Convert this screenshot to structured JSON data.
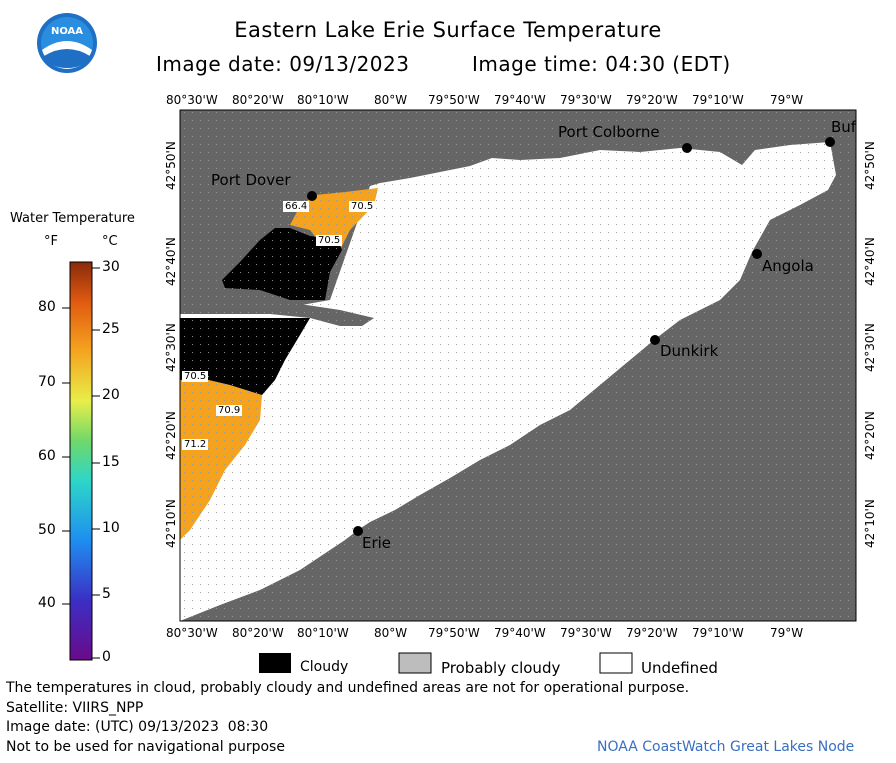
{
  "header": {
    "logo_text": "NOAA",
    "title": "Eastern Lake Erie Surface Temperature",
    "image_date_label": "Image date: 09/13/2023",
    "image_time_label": "Image time: 04:30 (EDT)"
  },
  "map": {
    "lon_labels": [
      "80°30'W",
      "80°20'W",
      "80°10'W",
      "80°W",
      "79°50'W",
      "79°40'W",
      "79°30'W",
      "79°20'W",
      "79°10'W",
      "79°W"
    ],
    "lat_labels": [
      "42°50'N",
      "42°40'N",
      "42°30'N",
      "42°20'N",
      "42°10'N"
    ],
    "cities": {
      "port_dover": "Port Dover",
      "port_colborne": "Port Colborne",
      "buffalo": "Buf",
      "angola": "Angola",
      "dunkirk": "Dunkirk",
      "erie": "Erie"
    },
    "temp_labels": [
      "66.4",
      "70.5",
      "70.5",
      "70.5",
      "70.9",
      "71.2"
    ],
    "colors": {
      "land": "#666666",
      "undefined": "#ffffff",
      "cloudy": "#000000",
      "warm_water": "#f5a21e"
    }
  },
  "scale": {
    "title": "Water Temperature",
    "unit_f": "°F",
    "unit_c": "°C",
    "f_ticks": [
      "80",
      "70",
      "60",
      "50",
      "40"
    ],
    "c_ticks": [
      "30",
      "25",
      "20",
      "15",
      "10",
      "5",
      "0"
    ]
  },
  "legend": {
    "cloudy": "Cloudy",
    "probably_cloudy": "Probably cloudy",
    "undefined": "Undefined"
  },
  "footer": {
    "disclaimer": "The temperatures in cloud, probably cloudy and undefined areas are not for operational purpose.",
    "satellite": "Satellite: VIIRS_NPP",
    "utc_date": "Image date: (UTC) 09/13/2023  08:30",
    "navigation": "Not to be used for navigational purpose",
    "credit": "NOAA CoastWatch Great Lakes Node"
  }
}
